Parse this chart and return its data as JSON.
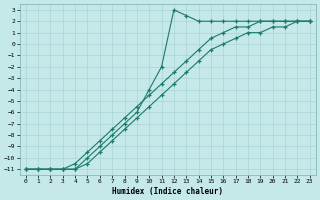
{
  "xlabel": "Humidex (Indice chaleur)",
  "xlim": [
    -0.5,
    23.5
  ],
  "ylim": [
    -11.5,
    3.5
  ],
  "xticks": [
    0,
    1,
    2,
    3,
    4,
    5,
    6,
    7,
    8,
    9,
    10,
    11,
    12,
    13,
    14,
    15,
    16,
    17,
    18,
    19,
    20,
    21,
    22,
    23
  ],
  "yticks": [
    3,
    2,
    1,
    0,
    -1,
    -2,
    -3,
    -4,
    -5,
    -6,
    -7,
    -8,
    -9,
    -10,
    -11
  ],
  "bg_color": "#c5e8e8",
  "grid_color": "#aad4d4",
  "line_color": "#1a7a6e",
  "line1_x": [
    0,
    1,
    2,
    3,
    4,
    5,
    6,
    7,
    8,
    9,
    10,
    11,
    12,
    13,
    14,
    15,
    16,
    17,
    18,
    19,
    20,
    21,
    22,
    23
  ],
  "line1_y": [
    -11,
    -11,
    -11,
    -11,
    -11,
    -10,
    -9,
    -8,
    -7,
    -6,
    -4,
    -2,
    3,
    2.5,
    2,
    2,
    2,
    2,
    2,
    2,
    2,
    2,
    2,
    2
  ],
  "line2_x": [
    0,
    1,
    2,
    3,
    4,
    5,
    6,
    7,
    8,
    9,
    10,
    11,
    12,
    13,
    14,
    15,
    16,
    17,
    18,
    19,
    20,
    21,
    22,
    23
  ],
  "line2_y": [
    -11,
    -11,
    -11,
    -11,
    -10.5,
    -9.5,
    -8.5,
    -7.5,
    -6.5,
    -5.5,
    -4.5,
    -3.5,
    -2.5,
    -1.5,
    -0.5,
    0.5,
    1,
    1.5,
    1.5,
    2,
    2,
    2,
    2,
    2
  ],
  "line3_x": [
    0,
    1,
    2,
    3,
    4,
    5,
    6,
    7,
    8,
    9,
    10,
    11,
    12,
    13,
    14,
    15,
    16,
    17,
    18,
    19,
    20,
    21,
    22,
    23
  ],
  "line3_y": [
    -11,
    -11,
    -11,
    -11,
    -11,
    -10.5,
    -9.5,
    -8.5,
    -7.5,
    -6.5,
    -5.5,
    -4.5,
    -3.5,
    -2.5,
    -1.5,
    -0.5,
    0,
    0.5,
    1,
    1,
    1.5,
    1.5,
    2,
    2
  ]
}
